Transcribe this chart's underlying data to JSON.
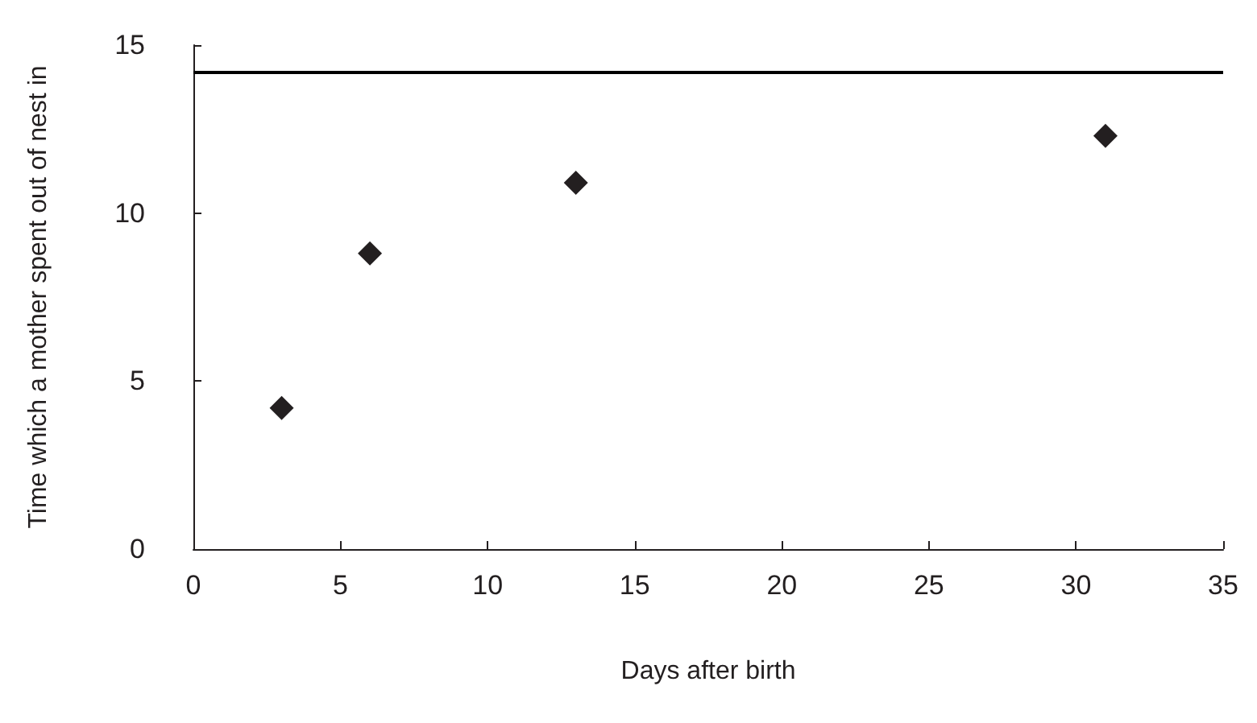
{
  "chart_data": {
    "type": "scatter",
    "xlabel": "Days after birth",
    "ylabel": "Time which a mother spent out of nest in",
    "x": [
      3,
      6,
      13,
      31
    ],
    "series": [
      {
        "color": "#231f20",
        "values": [
          4.2,
          8.8,
          10.9,
          12.3
        ]
      }
    ],
    "xlim": [
      0,
      35
    ],
    "xticks": [
      0,
      5,
      10,
      15,
      20,
      25,
      30,
      35
    ],
    "ylim": [
      0,
      15
    ],
    "yticks": [
      0,
      5,
      10,
      15
    ],
    "marker": "diamond",
    "grid": false,
    "ref_lines": [
      {
        "axis": "y",
        "value": 14.2,
        "color": "#000000",
        "line_style": "solid"
      }
    ]
  }
}
